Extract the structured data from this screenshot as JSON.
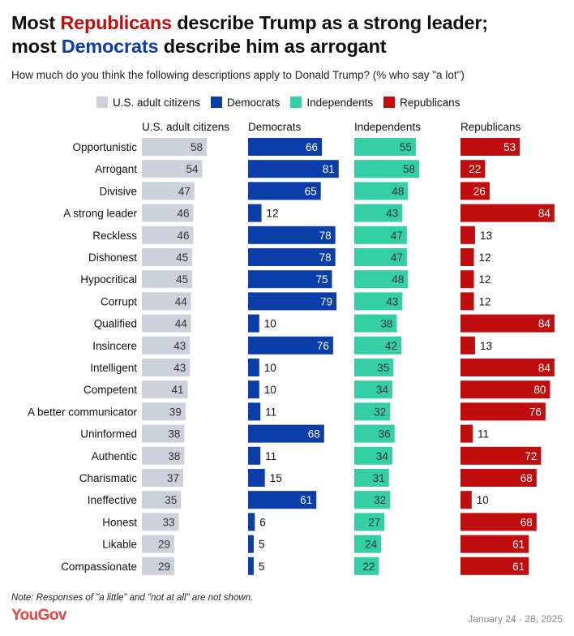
{
  "title": {
    "line1_pre": "Most ",
    "line1_highlight": "Republicans",
    "line1_post": " describe Trump as a strong leader;",
    "line2_pre": "most ",
    "line2_highlight": "Democrats",
    "line2_post": " describe him as arrogant"
  },
  "subtitle": "How much do you think the following descriptions apply to Donald Trump? (% who say \"a lot\")",
  "note": "Note: Responses of \"a little\" and \"not at all\" are not shown.",
  "logo": "YouGov",
  "date_range": "January 24 - 28, 2025",
  "colors": {
    "republican": "#c00d0d",
    "democrat": "#0b3ea8",
    "independent": "#34cfa4",
    "adults": "#cdd1dc"
  },
  "chart_data": {
    "type": "bar",
    "orientation": "horizontal",
    "layout": "small-multiples",
    "categories": [
      "Opportunistic",
      "Arrogant",
      "Divisive",
      "A strong leader",
      "Reckless",
      "Dishonest",
      "Hypocritical",
      "Corrupt",
      "Qualified",
      "Insincere",
      "Intelligent",
      "Competent",
      "A better communicator",
      "Uninformed",
      "Authentic",
      "Charismatic",
      "Ineffective",
      "Honest",
      "Likable",
      "Compassionate"
    ],
    "series": [
      {
        "name": "U.S. adult citizens",
        "color": "#cdd1dc",
        "values": [
          58,
          54,
          47,
          46,
          46,
          45,
          45,
          44,
          44,
          43,
          43,
          41,
          39,
          38,
          38,
          37,
          35,
          33,
          29,
          29
        ]
      },
      {
        "name": "Democrats",
        "color": "#0b3ea8",
        "values": [
          66,
          81,
          65,
          12,
          78,
          78,
          75,
          79,
          10,
          76,
          10,
          10,
          11,
          68,
          11,
          15,
          61,
          6,
          5,
          5
        ]
      },
      {
        "name": "Independents",
        "color": "#34cfa4",
        "values": [
          55,
          58,
          48,
          43,
          47,
          47,
          48,
          43,
          38,
          42,
          35,
          34,
          32,
          36,
          34,
          31,
          32,
          27,
          24,
          22
        ]
      },
      {
        "name": "Republicans",
        "color": "#c00d0d",
        "values": [
          53,
          22,
          26,
          84,
          13,
          12,
          12,
          12,
          84,
          13,
          84,
          80,
          76,
          11,
          72,
          68,
          10,
          68,
          61,
          61
        ]
      }
    ],
    "xlim": [
      0,
      100
    ],
    "legend_position": "top"
  }
}
